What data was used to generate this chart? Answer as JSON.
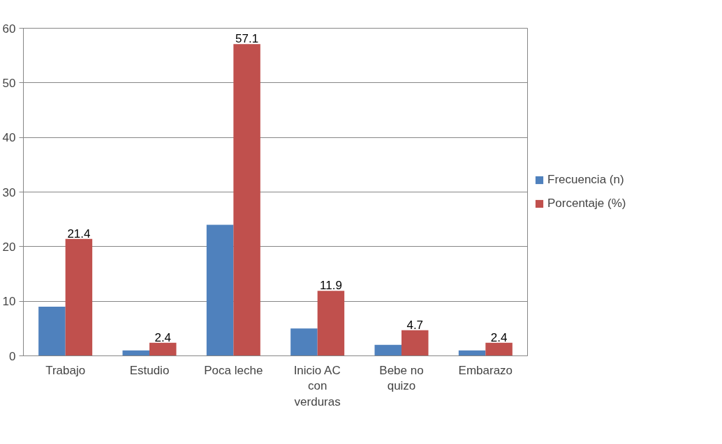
{
  "chart_data": {
    "type": "bar",
    "categories": [
      "Trabajo",
      "Estudio",
      "Poca leche",
      "Inicio AC con verduras",
      "Bebe no quizo",
      "Embarazo"
    ],
    "series": [
      {
        "name": "Frecuencia (n)",
        "color": "#4f81bd",
        "values": [
          9,
          1,
          24,
          5,
          2,
          1
        ]
      },
      {
        "name": "Porcentaje (%)",
        "color": "#c0504d",
        "values": [
          21.4,
          2.4,
          57.1,
          11.9,
          4.7,
          2.4
        ],
        "value_labels": [
          "21.4",
          "2.4",
          "57.1",
          "11.9",
          "4.7",
          "2.4"
        ]
      }
    ],
    "ylim": [
      0,
      60
    ],
    "yticks": [
      0,
      10,
      20,
      30,
      40,
      50,
      60
    ],
    "grid": "y",
    "legend": "right"
  }
}
